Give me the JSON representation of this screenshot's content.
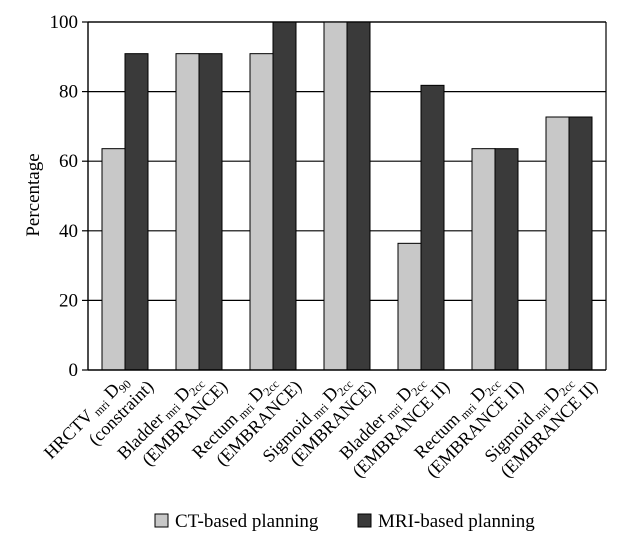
{
  "chart_data": {
    "type": "bar",
    "ylabel": "Percentage",
    "ylim": [
      0,
      100
    ],
    "yticks": [
      "0",
      "20",
      "40",
      "60",
      "80",
      "100"
    ],
    "grid": true,
    "legend_position": "bottom",
    "categories": [
      {
        "main": "HRCTV",
        "sub": "mri",
        "tail": " D",
        "tailsub": "90",
        "line2": "(constraint)"
      },
      {
        "main": "Bladder",
        "sub": "mri",
        "tail": " D",
        "tailsub": "2cc",
        "line2": "(EMBRANCE)"
      },
      {
        "main": "Rectum",
        "sub": "mri",
        "tail": " D",
        "tailsub": "2cc",
        "line2": "(EMBRANCE)"
      },
      {
        "main": "Sigmoid",
        "sub": "mri",
        "tail": " D",
        "tailsub": "2cc",
        "line2": "(EMBRANCE)"
      },
      {
        "main": "Bladder",
        "sub": "mri",
        "tail": " D",
        "tailsub": "2cc",
        "line2": "(EMBRANCE II)"
      },
      {
        "main": "Rectum",
        "sub": "mri",
        "tail": " D",
        "tailsub": "2cc",
        "line2": "(EMBRANCE II)"
      },
      {
        "main": "Sigmoid",
        "sub": "mri",
        "tail": " D",
        "tailsub": "2cc",
        "line2": "(EMBRANCE II)"
      }
    ],
    "series": [
      {
        "name": "CT-based planning",
        "color": "#c8c8c8",
        "values": [
          63.6,
          90.9,
          90.9,
          100,
          36.4,
          63.6,
          72.7
        ]
      },
      {
        "name": "MRI-based planning",
        "color": "#3a3a3a",
        "values": [
          90.9,
          90.9,
          100,
          100,
          81.8,
          63.6,
          72.7
        ]
      }
    ]
  }
}
